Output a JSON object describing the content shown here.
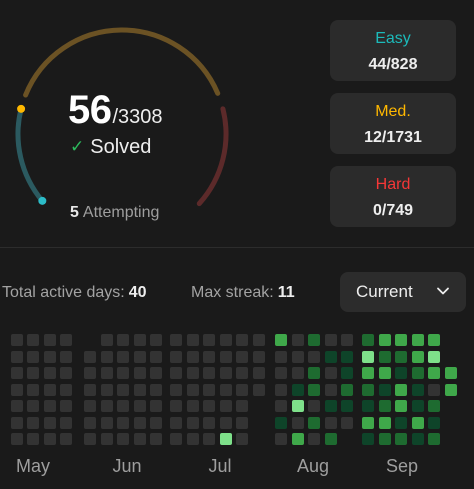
{
  "progress": {
    "solved": "56",
    "total": "/3308",
    "solved_label": "Solved",
    "attempting_count": "5",
    "attempting_label": "Attempting",
    "solved_fraction": 0.0169,
    "attempting_fraction": 0.0015,
    "track_colors": {
      "easy": "#3d3a2a",
      "easy_solid": "#5a4a2a",
      "medium": "#6b5224",
      "hard": "#5c2a2a",
      "easy_cyan": "#2b5a60",
      "marker_top": "#ffb800",
      "marker_bottom": "#2cbcc8"
    }
  },
  "difficulty": [
    {
      "name": "Easy",
      "value": "44/828",
      "color": "#1cbaba"
    },
    {
      "name": "Med.",
      "value": "12/1731",
      "color": "#ffb800"
    },
    {
      "name": "Hard",
      "value": "0/749",
      "color": "#f63737"
    }
  ],
  "stats": {
    "active_days_label": "Total active days:",
    "active_days_value": "40",
    "max_streak_label": "Max streak:",
    "max_streak_value": "11"
  },
  "dropdown": {
    "selected": "Current",
    "icon": "chevron-down-icon"
  },
  "heatmap": {
    "colors": {
      "0": "#333333",
      "1": "#0e4429",
      "2": "#1e6b30",
      "3": "#3fa84a",
      "4": "#7ee08a"
    },
    "months": [
      "May",
      "Jun",
      "Jul",
      "Aug",
      "Sep"
    ]
  }
}
